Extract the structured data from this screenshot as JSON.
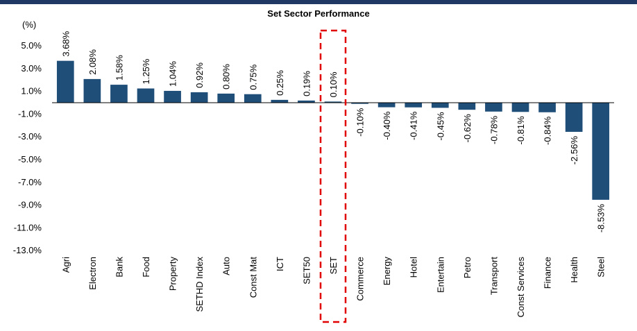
{
  "header_bar_color": "#1f3864",
  "chart_data": {
    "type": "bar",
    "title": "Set Sector Performance",
    "ylabel": "(%)",
    "xlabel": "",
    "ylim": [
      -13,
      7
    ],
    "yticks": [
      5,
      3,
      1,
      -1,
      -3,
      -5,
      -7,
      -9,
      -11,
      -13
    ],
    "ytick_labels": [
      "5.0%",
      "3.0%",
      "1.0%",
      "-1.0%",
      "-3.0%",
      "-5.0%",
      "-7.0%",
      "-9.0%",
      "-11.0%",
      "-13.0%"
    ],
    "categories": [
      "Agri",
      "Electron",
      "Bank",
      "Food",
      "Property",
      "SETHD Index",
      "Auto",
      "Const Mat",
      "ICT",
      "SET50",
      "SET",
      "Commerce",
      "Energy",
      "Hotel",
      "Entertain",
      "Petro",
      "Transport",
      "Const Services",
      "Finance",
      "Health",
      "Steel"
    ],
    "values": [
      3.68,
      2.08,
      1.58,
      1.25,
      1.04,
      0.92,
      0.8,
      0.75,
      0.25,
      0.19,
      0.1,
      -0.1,
      -0.4,
      -0.41,
      -0.45,
      -0.62,
      -0.78,
      -0.81,
      -0.84,
      -2.56,
      -8.53
    ],
    "data_labels": [
      "3.68%",
      "2.08%",
      "1.58%",
      "1.25%",
      "1.04%",
      "0.92%",
      "0.80%",
      "0.75%",
      "0.25%",
      "0.19%",
      "0.10%",
      "-0.10%",
      "-0.40%",
      "-0.41%",
      "-0.45%",
      "-0.62%",
      "-0.78%",
      "-0.81%",
      "-0.84%",
      "-2.56%",
      "-8.53%"
    ],
    "bar_color": "#1f4e79",
    "highlight_category": "SET",
    "highlight_color": "#e00000",
    "grid": false,
    "legend": "none"
  }
}
